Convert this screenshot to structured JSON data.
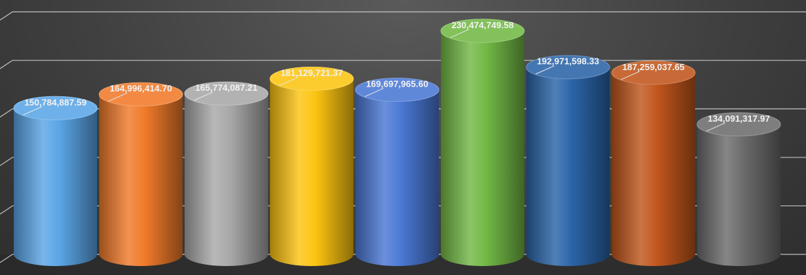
{
  "chart_data": {
    "type": "bar",
    "style": "3d-cylinder",
    "title": "",
    "xlabel": "",
    "ylabel": "",
    "grid": true,
    "legend": "none",
    "ylim": [
      0,
      250000000
    ],
    "series": [
      {
        "values": [
          150784887.59,
          164996414.7,
          165774087.21,
          181129721.37,
          169697965.6,
          230474749.58,
          192971598.33,
          187259037.65,
          134091317.97
        ],
        "labels": [
          "150,784,887.59",
          "164,996,414.70",
          "165,774,087.21",
          "181,129,721.37",
          "169,697,965.60",
          "230,474,749.58",
          "192,971,598.33",
          "187,259,037.65",
          "134,091,317.97"
        ],
        "colors": [
          "#5aa5e6",
          "#f07a2a",
          "#a8a8a8",
          "#fcc411",
          "#4a78d4",
          "#72b845",
          "#2a64a8",
          "#c0561c",
          "#6c6c6c"
        ]
      }
    ]
  }
}
